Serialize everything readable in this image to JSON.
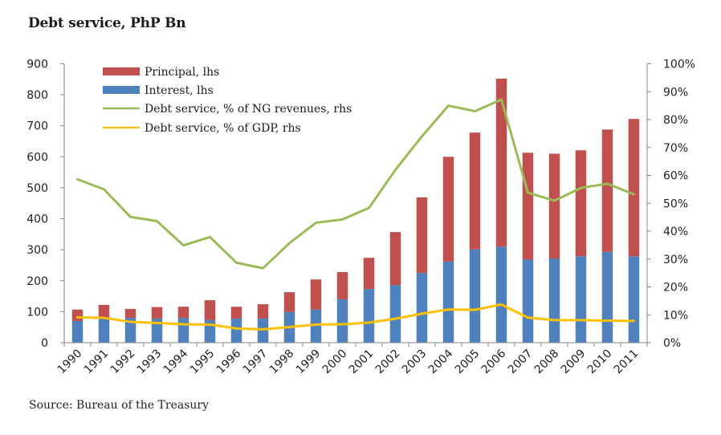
{
  "chart_data": {
    "type": "bar",
    "title": "Debt service, PhP Bn",
    "source": "Source: Bureau of the Treasury",
    "xlabel": "",
    "ylabel": "",
    "categories": [
      "1990",
      "1991",
      "1992",
      "1993",
      "1994",
      "1995",
      "1996",
      "1997",
      "1998",
      "1999",
      "2000",
      "2001",
      "2002",
      "2003",
      "2004",
      "2005",
      "2006",
      "2007",
      "2008",
      "2009",
      "2010",
      "2011"
    ],
    "left_axis": {
      "ylim": [
        0,
        900
      ],
      "ticks": [
        0,
        100,
        200,
        300,
        400,
        500,
        600,
        700,
        800,
        900
      ],
      "tick_labels": [
        "0",
        "100",
        "200",
        "300",
        "400",
        "500",
        "600",
        "700",
        "800",
        "900"
      ]
    },
    "right_axis": {
      "ylim": [
        0,
        100
      ],
      "ticks": [
        0,
        10,
        20,
        30,
        40,
        50,
        60,
        70,
        80,
        90,
        100
      ],
      "tick_labels": [
        "0%",
        "10%",
        "20%",
        "30%",
        "40%",
        "50%",
        "60%",
        "70%",
        "80%",
        "90%",
        "100%"
      ]
    },
    "grid": false,
    "legend_position": "top-left",
    "series": [
      {
        "name": "Interest, lhs",
        "kind": "stacked-bar",
        "axis": "left",
        "color": "#4F81BD",
        "values": [
          70,
          78,
          80,
          78,
          80,
          73,
          78,
          78,
          99,
          107,
          140,
          173,
          186,
          225,
          262,
          301,
          310,
          268,
          272,
          279,
          293,
          279
        ]
      },
      {
        "name": "Principal, lhs",
        "kind": "stacked-bar",
        "axis": "left",
        "color": "#C0504D",
        "values": [
          37,
          44,
          29,
          37,
          36,
          64,
          38,
          46,
          64,
          97,
          88,
          101,
          171,
          244,
          338,
          377,
          542,
          345,
          338,
          342,
          395,
          443
        ]
      },
      {
        "name": "Debt service, % of NG revenues, rhs",
        "kind": "line",
        "axis": "right",
        "color": "#9BBB59",
        "values": [
          58.6,
          55.0,
          45.1,
          43.6,
          34.9,
          37.9,
          28.7,
          26.7,
          35.7,
          43.0,
          44.2,
          48.3,
          62.0,
          74.0,
          85.0,
          83.0,
          87.2,
          53.8,
          50.9,
          55.5,
          57.0,
          53.2
        ]
      },
      {
        "name": "Debt service, % of GDP, rhs",
        "kind": "line",
        "axis": "right",
        "color": "#FFC000",
        "values": [
          9.1,
          8.9,
          7.5,
          7.1,
          6.6,
          6.5,
          5.1,
          4.8,
          5.6,
          6.5,
          6.6,
          7.2,
          8.6,
          10.4,
          11.9,
          11.8,
          13.7,
          9.0,
          8.1,
          8.1,
          7.9,
          7.8
        ]
      }
    ],
    "legend": [
      {
        "label": "Principal, lhs",
        "symbol": "bar",
        "color": "#C0504D"
      },
      {
        "label": "Interest, lhs",
        "symbol": "bar",
        "color": "#4F81BD"
      },
      {
        "label": "Debt service, % of NG revenues, rhs",
        "symbol": "line",
        "color": "#9BBB59"
      },
      {
        "label": "Debt service, % of GDP, rhs",
        "symbol": "line",
        "color": "#F2C21C"
      }
    ]
  }
}
